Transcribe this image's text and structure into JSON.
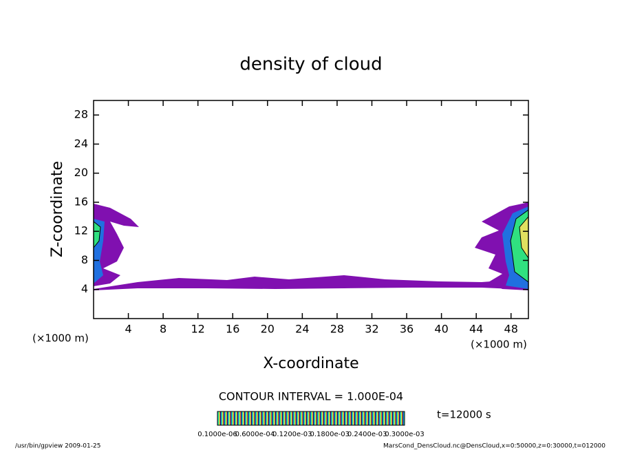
{
  "chart_data": {
    "type": "contour",
    "title": "density of cloud",
    "xlabel": "X-coordinate",
    "ylabel": "Z-coordinate",
    "xunit": "(×1000 m)",
    "yunit": "(×1000 m)",
    "xlim": [
      0,
      50
    ],
    "xticks": [
      4,
      8,
      12,
      16,
      20,
      24,
      28,
      32,
      36,
      40,
      44,
      48
    ],
    "ylim": [
      0,
      30
    ],
    "yticks": [
      4,
      8,
      12,
      16,
      20,
      24,
      28
    ],
    "contour_interval": "CONTOUR INTERVAL = 1.000E-04",
    "time_label": "t=12000 s",
    "colorbar_labels": [
      "0.1000e-06",
      "0.6000e-04",
      "0.1200e-03",
      "0.1800e-03",
      "0.2400e-03",
      "0.3000e-03"
    ],
    "footer_left": "/usr/bin/gpview   2009-01-25",
    "footer_right": "MarsCond_DensCloud.nc@DensCloud,x=0:50000,z=0:30000,t=012000"
  }
}
